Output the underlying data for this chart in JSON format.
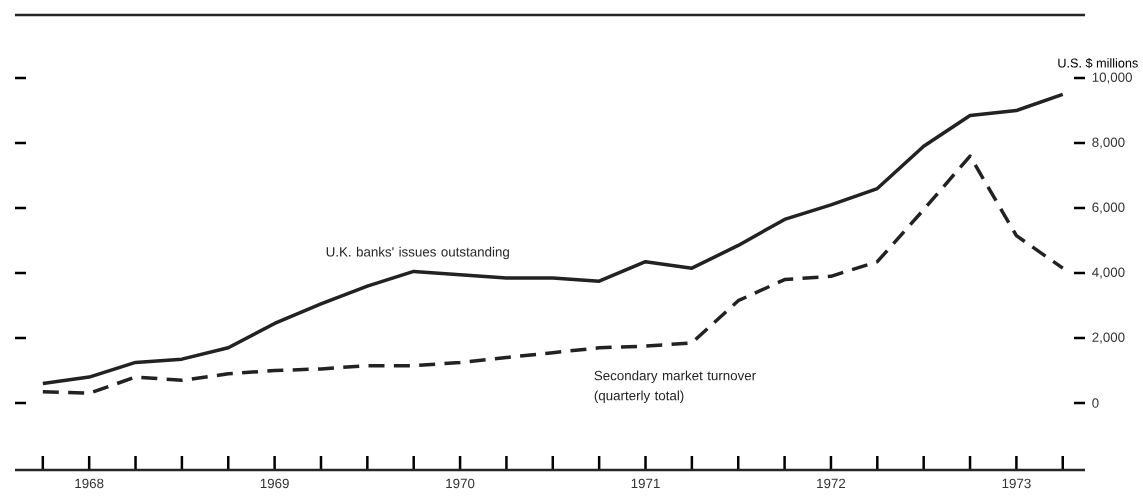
{
  "chart_data": {
    "type": "line",
    "ylabel": "U.S. $ millions",
    "x": [
      1968.25,
      1968.5,
      1968.75,
      1969.0,
      1969.25,
      1969.5,
      1969.75,
      1970.0,
      1970.25,
      1970.5,
      1970.75,
      1971.0,
      1971.25,
      1971.5,
      1971.75,
      1972.0,
      1972.25,
      1972.5,
      1972.75,
      1973.0,
      1973.25,
      1973.5,
      1973.75
    ],
    "series": [
      {
        "name": "U.K. banks' issues outstanding",
        "color": "#222222",
        "line_style": "solid",
        "values": [
          600,
          800,
          1250,
          1350,
          1700,
          2450,
          3050,
          3600,
          4050,
          3950,
          3850,
          3850,
          3750,
          4350,
          4150,
          4850,
          5650,
          6100,
          6600,
          7900,
          8850,
          9000,
          9500
        ]
      },
      {
        "name": "Secondary market turnover (quarterly total)",
        "color": "#222222",
        "line_style": "dashed",
        "values": [
          350,
          300,
          800,
          700,
          900,
          1000,
          1050,
          1150,
          1150,
          1250,
          1400,
          1550,
          1700,
          1750,
          1850,
          3150,
          3800,
          3900,
          4350,
          5950,
          7600,
          5150,
          4150
        ]
      }
    ],
    "xlim": [
      1968.1,
      1973.87
    ],
    "ylim": [
      -2060,
      11940
    ],
    "xticks": [
      {
        "value": 1968.25,
        "label": null
      },
      {
        "value": 1968.5,
        "label": "1968"
      },
      {
        "value": 1968.75,
        "label": null
      },
      {
        "value": 1969.0,
        "label": null
      },
      {
        "value": 1969.25,
        "label": null
      },
      {
        "value": 1969.5,
        "label": "1969"
      },
      {
        "value": 1969.75,
        "label": null
      },
      {
        "value": 1970.0,
        "label": null
      },
      {
        "value": 1970.25,
        "label": null
      },
      {
        "value": 1970.5,
        "label": "1970"
      },
      {
        "value": 1970.75,
        "label": null
      },
      {
        "value": 1971.0,
        "label": null
      },
      {
        "value": 1971.25,
        "label": null
      },
      {
        "value": 1971.5,
        "label": "1971"
      },
      {
        "value": 1971.75,
        "label": null
      },
      {
        "value": 1972.0,
        "label": null
      },
      {
        "value": 1972.25,
        "label": null
      },
      {
        "value": 1972.5,
        "label": "1972"
      },
      {
        "value": 1972.75,
        "label": null
      },
      {
        "value": 1973.0,
        "label": null
      },
      {
        "value": 1973.25,
        "label": null
      },
      {
        "value": 1973.5,
        "label": "1973"
      },
      {
        "value": 1973.75,
        "label": null
      }
    ],
    "yticks": [
      0,
      {
        "value": 2000,
        "label": "2,000"
      },
      {
        "value": 4000,
        "label": "4,000"
      },
      {
        "value": 6000,
        "label": "6,000"
      },
      {
        "value": 8000,
        "label": "8,000"
      },
      {
        "value": 10000,
        "label": "10,000"
      }
    ],
    "grid": false,
    "legend": false
  }
}
